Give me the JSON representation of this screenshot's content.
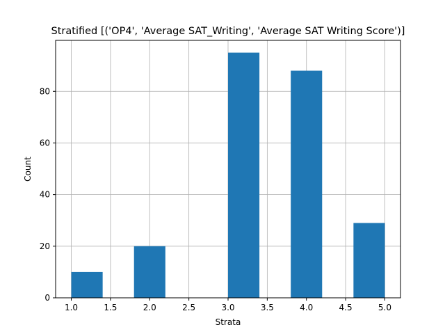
{
  "chart_data": {
    "type": "bar",
    "title": "Stratified [('OP4', 'Average SAT_Writing', 'Average SAT Writing Score')]",
    "xlabel": "Strata",
    "ylabel": "Count",
    "bins": [
      {
        "x0": 1.0,
        "x1": 1.4,
        "value": 10
      },
      {
        "x0": 1.4,
        "x1": 1.8,
        "value": 0
      },
      {
        "x0": 1.8,
        "x1": 2.2,
        "value": 20
      },
      {
        "x0": 2.2,
        "x1": 2.6,
        "value": 0
      },
      {
        "x0": 2.6,
        "x1": 3.0,
        "value": 0
      },
      {
        "x0": 3.0,
        "x1": 3.4,
        "value": 95
      },
      {
        "x0": 3.4,
        "x1": 3.8,
        "value": 0
      },
      {
        "x0": 3.8,
        "x1": 4.2,
        "value": 88
      },
      {
        "x0": 4.2,
        "x1": 4.6,
        "value": 0
      },
      {
        "x0": 4.6,
        "x1": 5.0,
        "value": 29
      }
    ],
    "xlim": [
      0.8,
      5.2
    ],
    "ylim": [
      0,
      99.75
    ],
    "xticks": [
      "1.0",
      "1.5",
      "2.0",
      "2.5",
      "3.0",
      "3.5",
      "4.0",
      "4.5",
      "5.0"
    ],
    "yticks": [
      "0",
      "20",
      "40",
      "60",
      "80"
    ],
    "grid": true,
    "bar_color": "#1f77b4"
  }
}
